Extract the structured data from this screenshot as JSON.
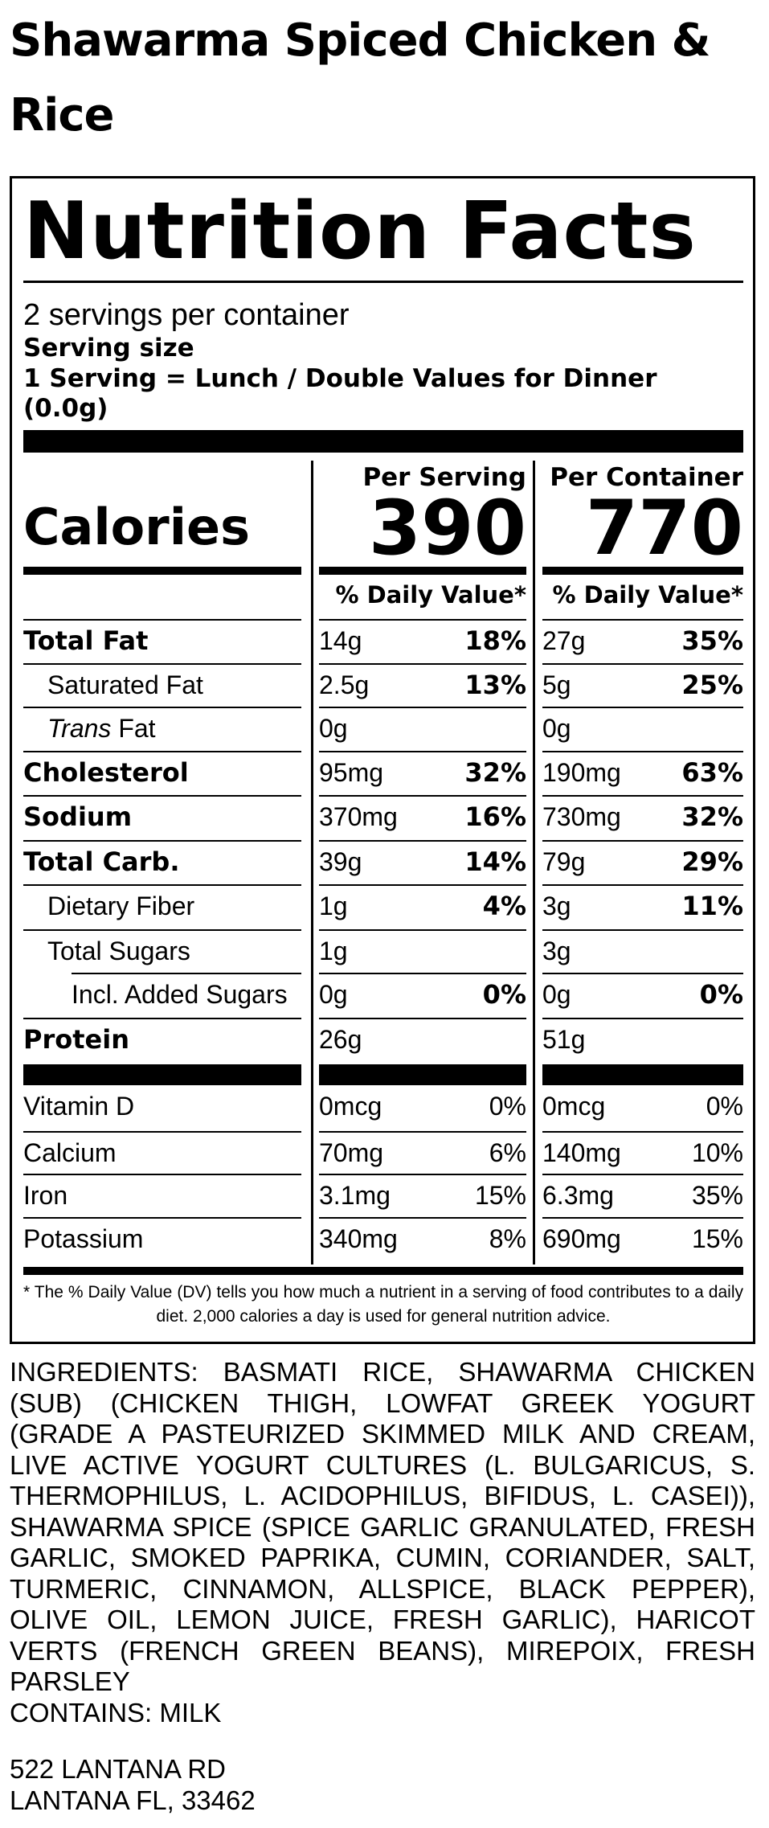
{
  "product_title": "Shawarma Spiced Chicken & Rice",
  "label": {
    "heading": "Nutrition Facts",
    "servings_per_container": "2 servings per container",
    "serving_size_label": "Serving size",
    "serving_size_value_line1": "1 Serving = Lunch / Double Values for Dinner",
    "serving_size_value_line2": "(0.0g)",
    "calories_label": "Calories",
    "col1_heading": "Per Serving",
    "col2_heading": "Per Container",
    "calories_per_serving": "390",
    "calories_per_container": "770",
    "dv_heading": "% Daily Value*",
    "nutrients": [
      {
        "name": "Total Fat",
        "amt1": "14g",
        "dv1": "18%",
        "amt2": "27g",
        "dv2": "35%"
      },
      {
        "name": "Saturated Fat",
        "amt1": "2.5g",
        "dv1": "13%",
        "amt2": "5g",
        "dv2": "25%"
      },
      {
        "name_italic": "Trans",
        "name": " Fat",
        "amt1": "0g",
        "dv1": "",
        "amt2": "0g",
        "dv2": ""
      },
      {
        "name": "Cholesterol",
        "amt1": "95mg",
        "dv1": "32%",
        "amt2": "190mg",
        "dv2": "63%"
      },
      {
        "name": "Sodium",
        "amt1": "370mg",
        "dv1": "16%",
        "amt2": "730mg",
        "dv2": "32%"
      },
      {
        "name": "Total Carb.",
        "amt1": "39g",
        "dv1": "14%",
        "amt2": "79g",
        "dv2": "29%"
      },
      {
        "name": "Dietary Fiber",
        "amt1": "1g",
        "dv1": "4%",
        "amt2": "3g",
        "dv2": "11%"
      },
      {
        "name": "Total Sugars",
        "amt1": "1g",
        "dv1": "",
        "amt2": "3g",
        "dv2": ""
      },
      {
        "name": "Incl. Added Sugars",
        "amt1": "0g",
        "dv1": "0%",
        "amt2": "0g",
        "dv2": "0%"
      },
      {
        "name": "Protein",
        "amt1": "26g",
        "dv1": "",
        "amt2": "51g",
        "dv2": ""
      }
    ],
    "vitamins": [
      {
        "name": "Vitamin D",
        "amt1": "0mcg",
        "dv1": "0%",
        "amt2": "0mcg",
        "dv2": "0%"
      },
      {
        "name": "Calcium",
        "amt1": "70mg",
        "dv1": "6%",
        "amt2": "140mg",
        "dv2": "10%"
      },
      {
        "name": "Iron",
        "amt1": "3.1mg",
        "dv1": "15%",
        "amt2": "6.3mg",
        "dv2": "35%"
      },
      {
        "name": "Potassium",
        "amt1": "340mg",
        "dv1": "8%",
        "amt2": "690mg",
        "dv2": "15%"
      }
    ],
    "footnote": "* The % Daily Value (DV) tells you how much a nutrient in a serving of food contributes to a daily diet. 2,000 calories a day is used for general nutrition advice."
  },
  "ingredients": "INGREDIENTS: BASMATI RICE, SHAWARMA CHICKEN (SUB) (CHICKEN THIGH, LOWFAT GREEK YOGURT (GRADE A PASTEURIZED SKIMMED MILK AND CREAM, LIVE ACTIVE YOGURT CULTURES (L. BULGARICUS, S. THERMOPHILUS, L. ACIDOPHILUS, BIFIDUS, L. CASEI)), SHAWARMA SPICE (SPICE GARLIC GRANULATED, FRESH GARLIC, SMOKED PAPRIKA, CUMIN, CORIANDER, SALT, TURMERIC, CINNAMON, ALLSPICE, BLACK PEPPER), OLIVE OIL, LEMON JUICE, FRESH GARLIC), HARICOT VERTS (FRENCH GREEN BEANS), MIREPOIX, FRESH PARSLEY",
  "contains": "CONTAINS: MILK",
  "address_line1": "522 LANTANA RD",
  "address_line2": "LANTANA FL, 33462"
}
